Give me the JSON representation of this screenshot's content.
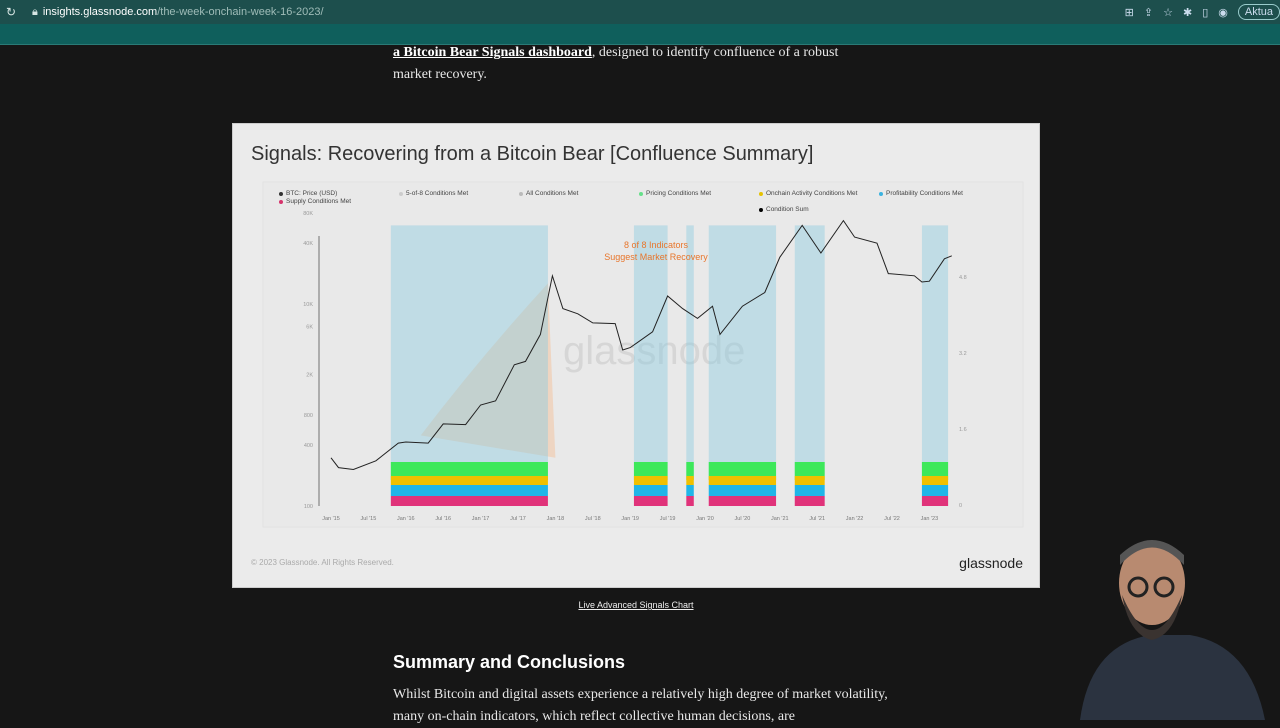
{
  "browser": {
    "url_host": "insights.glassnode.com",
    "url_path": "/the-week-onchain-week-16-2023/",
    "update_label": "Aktua"
  },
  "article": {
    "intro_link": "a Bitcoin Bear Signals dashboard",
    "intro_rest": ", designed to identify confluence of a robust market recovery.",
    "live_link": "Live Advanced Signals Chart",
    "section_title": "Summary and Conclusions",
    "paragraph": "Whilst Bitcoin and digital assets experience a relatively high degree of market volatility, many on-chain indicators, which reflect collective human decisions, are"
  },
  "chart_card": {
    "title": "Signals: Recovering from a Bitcoin Bear [Confluence Summary]",
    "copyright": "© 2023 Glassnode. All Rights Reserved.",
    "brand": "glassnode",
    "watermark": "glassnode"
  },
  "chart_data": {
    "type": "line",
    "title": "Signals: Recovering from a Bitcoin Bear [Confluence Summary]",
    "annotation": [
      "8 of 8 Indicators",
      "Suggest Market Recovery"
    ],
    "legend": [
      {
        "label": "BTC: Price (USD)",
        "color": "#333333"
      },
      {
        "label": "Supply Conditions Met",
        "color": "#d6336c"
      },
      {
        "label": "5-of-8 Conditions Met",
        "color": "#cccccc"
      },
      {
        "label": "All Conditions Met",
        "color": "#bbbbbb"
      },
      {
        "label": "Pricing Conditions Met",
        "color": "#66e08a"
      },
      {
        "label": "Onchain Activity Conditions Met",
        "color": "#e6c200"
      },
      {
        "label": "Condition Sum",
        "color": "#000000"
      },
      {
        "label": "Profitability Conditions Met",
        "color": "#3bb3e0"
      }
    ],
    "x_ticks": [
      "Jan '15",
      "Jul '15",
      "Jan '16",
      "Jul '16",
      "Jan '17",
      "Jul '17",
      "Jan '18",
      "Jul '18",
      "Jan '19",
      "Jul '19",
      "Jan '20",
      "Jul '20",
      "Jan '21",
      "Jul '21",
      "Jan '22",
      "Jul '22",
      "Jan '23"
    ],
    "y_left_ticks": [
      {
        "label": "80K",
        "v": 80000
      },
      {
        "label": "40K",
        "v": 40000
      },
      {
        "label": "10K",
        "v": 10000
      },
      {
        "label": "6K",
        "v": 6000
      },
      {
        "label": "2K",
        "v": 2000
      },
      {
        "label": "800",
        "v": 800
      },
      {
        "label": "400",
        "v": 400
      },
      {
        "label": "100",
        "v": 100
      }
    ],
    "y_right_ticks": [
      "4.8",
      "3.2",
      "1.6",
      "0"
    ],
    "y_scale": "log",
    "ylim": [
      100,
      80000
    ],
    "xlim": [
      2014.95,
      2023.45
    ],
    "price": [
      [
        2015.0,
        300
      ],
      [
        2015.1,
        240
      ],
      [
        2015.3,
        230
      ],
      [
        2015.6,
        280
      ],
      [
        2015.9,
        420
      ],
      [
        2016.0,
        430
      ],
      [
        2016.3,
        420
      ],
      [
        2016.5,
        650
      ],
      [
        2016.8,
        640
      ],
      [
        2017.0,
        1000
      ],
      [
        2017.2,
        1100
      ],
      [
        2017.45,
        2500
      ],
      [
        2017.6,
        2700
      ],
      [
        2017.8,
        5000
      ],
      [
        2017.96,
        19000
      ],
      [
        2018.1,
        9000
      ],
      [
        2018.3,
        8000
      ],
      [
        2018.5,
        6500
      ],
      [
        2018.8,
        6400
      ],
      [
        2018.9,
        3500
      ],
      [
        2019.0,
        3700
      ],
      [
        2019.3,
        5300
      ],
      [
        2019.5,
        12000
      ],
      [
        2019.7,
        9000
      ],
      [
        2019.9,
        7200
      ],
      [
        2020.1,
        9500
      ],
      [
        2020.2,
        5000
      ],
      [
        2020.5,
        9500
      ],
      [
        2020.8,
        13000
      ],
      [
        2021.0,
        29000
      ],
      [
        2021.3,
        60000
      ],
      [
        2021.55,
        32000
      ],
      [
        2021.85,
        67000
      ],
      [
        2022.0,
        46000
      ],
      [
        2022.3,
        40000
      ],
      [
        2022.45,
        20000
      ],
      [
        2022.8,
        19000
      ],
      [
        2022.9,
        16500
      ],
      [
        2023.0,
        16800
      ],
      [
        2023.2,
        28000
      ],
      [
        2023.3,
        30000
      ]
    ],
    "condition_periods": [
      [
        2015.8,
        2017.9
      ],
      [
        2019.05,
        2019.5
      ],
      [
        2019.75,
        2019.85
      ],
      [
        2020.05,
        2020.95
      ],
      [
        2021.2,
        2021.6
      ],
      [
        2022.9,
        2023.25
      ]
    ]
  }
}
